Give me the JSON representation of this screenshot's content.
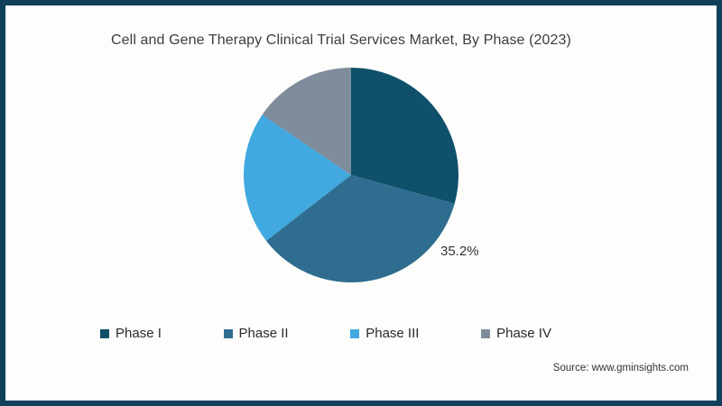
{
  "frame": {
    "border_color": "#11405a",
    "background": "#fdfdfb"
  },
  "chart_data": {
    "type": "pie",
    "title": "Cell and Gene Therapy Clinical Trial Services Market, By Phase (2023)",
    "categories": [
      "Phase I",
      "Phase II",
      "Phase III",
      "Phase IV"
    ],
    "values": [
      29.3,
      35.2,
      20.0,
      15.5
    ],
    "unit": "%",
    "colors": [
      "#0f506b",
      "#2e6d90",
      "#41a8e0",
      "#7e8c9c"
    ],
    "start_angle_deg": 0,
    "direction": "clockwise",
    "data_labels": [
      {
        "category": "Phase II",
        "text": "35.2%"
      }
    ],
    "legend_position": "bottom"
  },
  "source": {
    "text": "Source: www.gminsights.com"
  }
}
